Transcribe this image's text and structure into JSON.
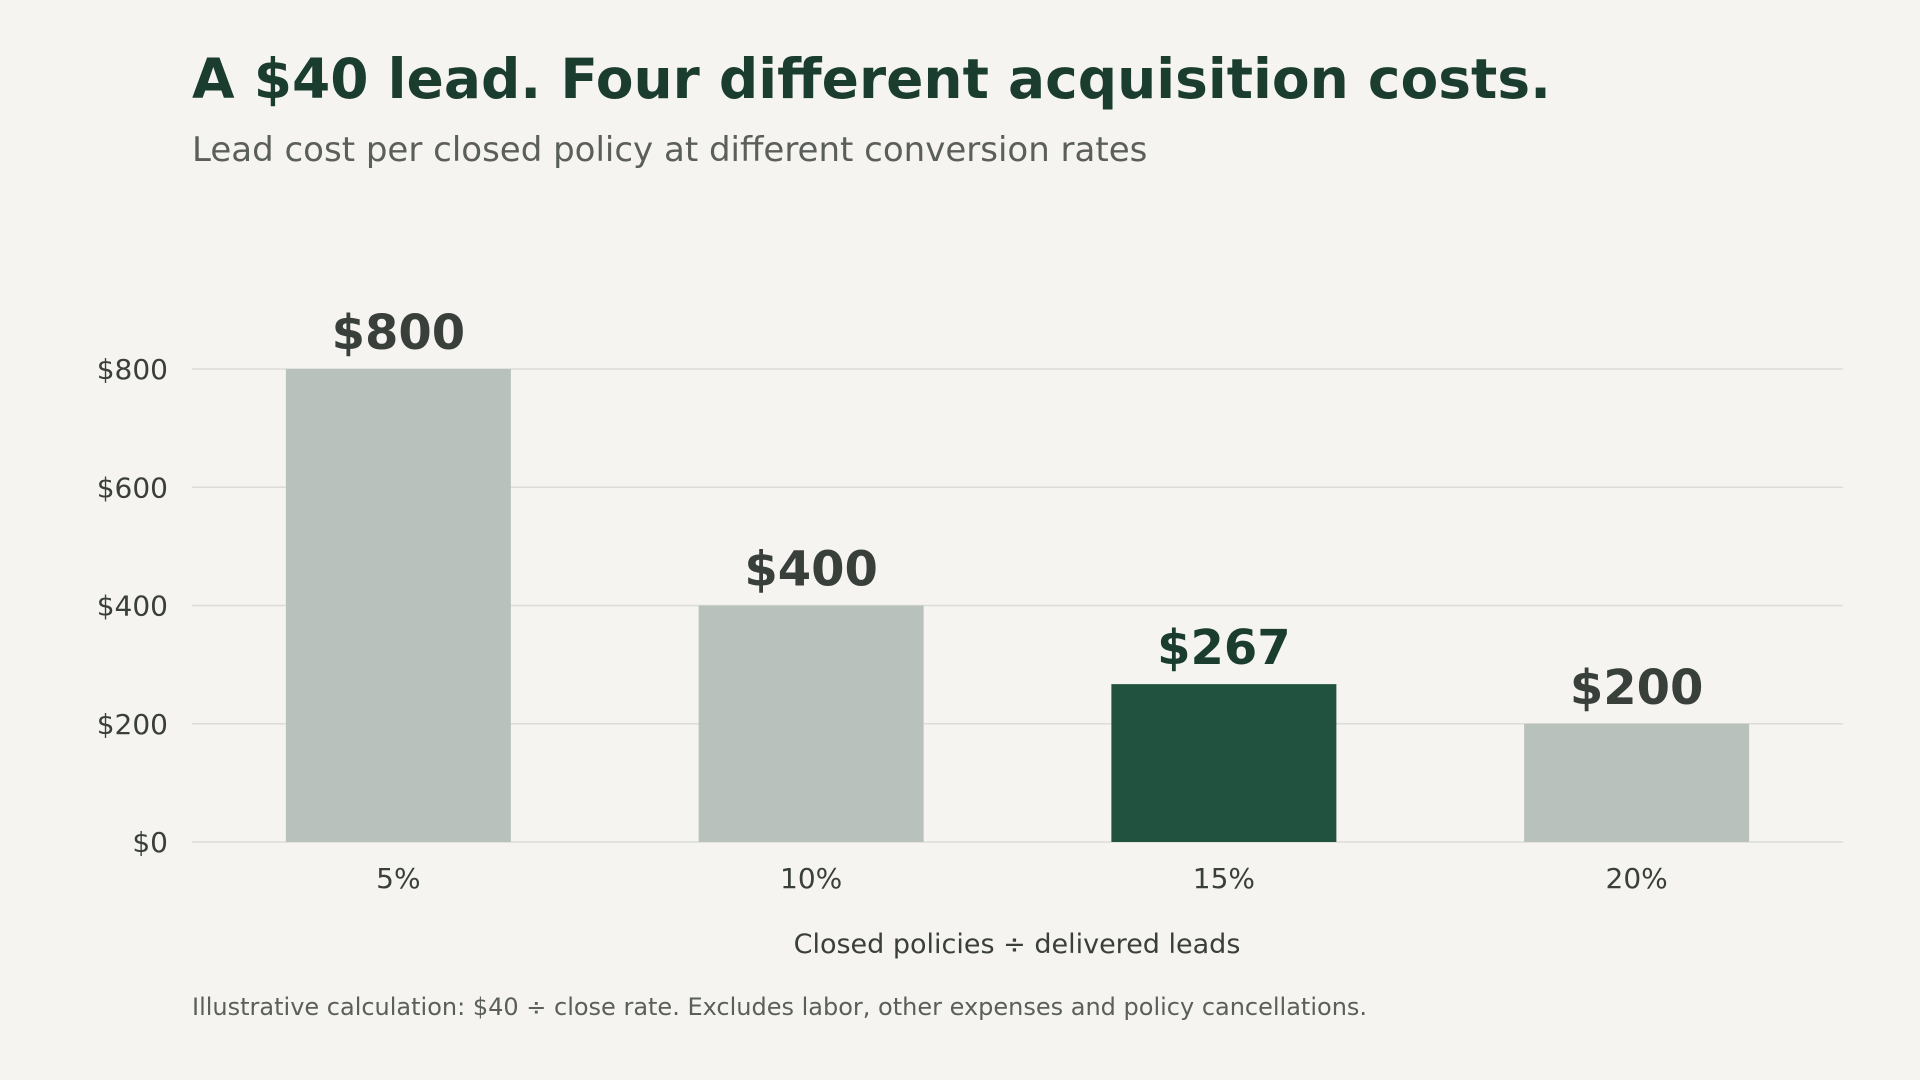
{
  "header": {
    "title": "A $40 lead. Four different acquisition costs.",
    "subtitle": "Lead cost per closed policy at different conversion rates"
  },
  "footnote": "Illustrative calculation: $40 ÷ close rate. Excludes labor, other expenses and policy cancellations.",
  "chart_data": {
    "type": "bar",
    "title": "A $40 lead. Four different acquisition costs.",
    "subtitle": "Lead cost per closed policy at different conversion rates",
    "xlabel": "Closed policies ÷ delivered leads",
    "ylabel": "",
    "categories": [
      "5%",
      "10%",
      "15%",
      "20%"
    ],
    "values": [
      800,
      400,
      267,
      200
    ],
    "value_labels": [
      "$800",
      "$400",
      "$267",
      "$200"
    ],
    "ylim": [
      0,
      800
    ],
    "yticks": [
      0,
      200,
      400,
      600,
      800
    ],
    "ytick_labels": [
      "$0",
      "$200",
      "$400",
      "$600",
      "$800"
    ],
    "grid": "horizontal",
    "legend": "none",
    "highlight_index": 2,
    "colors": {
      "bar": "#b8c1bb",
      "highlight": "#21513f",
      "label": "#39403b",
      "highlight_label": "#1b3d2f",
      "grid": "#dcddd8",
      "axis_text": "#3a3f3b"
    }
  }
}
